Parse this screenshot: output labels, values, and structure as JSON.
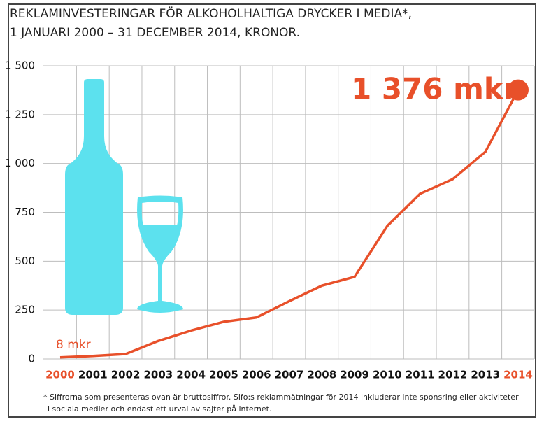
{
  "chart_data": {
    "type": "line",
    "title": "REKLAMINVESTERINGAR FÖR ALKOHOLHALTIGA DRYCKER I MEDIA*,",
    "subtitle": "1 JANUARI 2000 – 31 DECEMBER 2014, KRONOR.",
    "categories": [
      "2000",
      "2001",
      "2002",
      "2003",
      "2004",
      "2005",
      "2006",
      "2007",
      "2008",
      "2009",
      "2010",
      "2011",
      "2012",
      "2013",
      "2014"
    ],
    "category_label_colors": [
      "#e8502a",
      "#111111",
      "#111111",
      "#111111",
      "#111111",
      "#111111",
      "#111111",
      "#111111",
      "#111111",
      "#111111",
      "#111111",
      "#111111",
      "#111111",
      "#111111",
      "#e8502a"
    ],
    "series": [
      {
        "name": "Reklaminvesteringar",
        "color": "#e8502a",
        "values": [
          8,
          15,
          25,
          92,
          145,
          190,
          212,
          295,
          375,
          420,
          680,
          845,
          920,
          1060,
          1376
        ]
      }
    ],
    "ylim": [
      0,
      1500
    ],
    "yticks": [
      0,
      250,
      500,
      750,
      {
        "value": 1000,
        "label": "1 000"
      },
      {
        "value": 1250,
        "label": "1 250"
      },
      {
        "value": 1500,
        "label": "1 500"
      }
    ],
    "grid": true,
    "annotations": [
      "1 376 mkr",
      "8 mkr"
    ],
    "notes": [
      "* Siffrorna som presenteras ovan är bruttosiffror. Sifo:s reklammätningar för 2014 inkluderar inte sponsring eller aktiviteter",
      "i sociala medier och endast ett urval av sajter på internet."
    ]
  }
}
